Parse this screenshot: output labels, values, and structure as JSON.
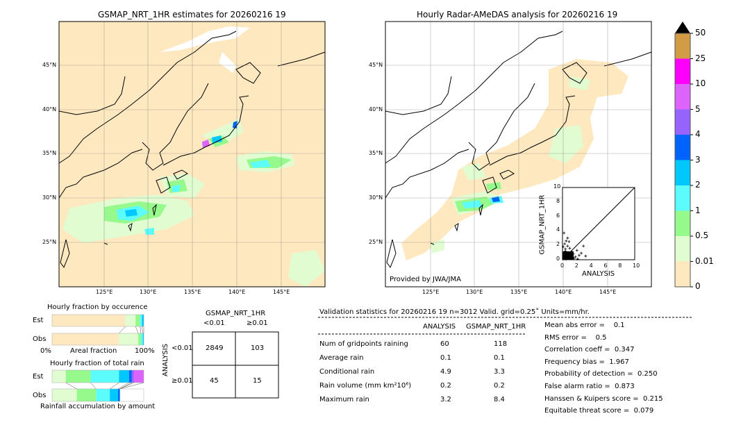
{
  "left_map": {
    "title": "GSMAP_NRT_1HR estimates for 20260216 19",
    "lon_ticks": [
      "125°E",
      "130°E",
      "135°E",
      "140°E",
      "145°E"
    ],
    "lat_ticks": [
      "45°N",
      "40°N",
      "35°N",
      "30°N",
      "25°N"
    ]
  },
  "right_map": {
    "title": "Hourly Radar-AMeDAS analysis for 20260216 19",
    "lon_ticks": [
      "125°E",
      "130°E",
      "135°E",
      "140°E",
      "145°E"
    ],
    "lat_ticks": [
      "45°N",
      "40°N",
      "35°N",
      "30°N",
      "25°N"
    ],
    "credit": "Provided by JWA/JMA"
  },
  "colorbar": {
    "labels": [
      "0",
      "0.01",
      "0.5",
      "1",
      "2",
      "3",
      "4",
      "5",
      "10",
      "25",
      "50"
    ],
    "colors": [
      "#fee8c0",
      "#e0fcd0",
      "#96f98c",
      "#5cfcfc",
      "#00c8fc",
      "#0064fc",
      "#9664fc",
      "#dc64fc",
      "#fc00fc",
      "#d29b46"
    ],
    "extend_color": "#000000"
  },
  "chart_data": [
    {
      "type": "scatter",
      "xlabel": "ANALYSIS",
      "ylabel": "GSMAP_NRT_1HR",
      "xlim": [
        0,
        10
      ],
      "ylim": [
        0,
        10
      ],
      "x_ticks": [
        "0",
        "2",
        "4",
        "6",
        "8",
        "10"
      ],
      "y_ticks": [
        "0",
        "2",
        "4",
        "6",
        "8",
        "10"
      ],
      "diagonal": true,
      "points": [
        [
          0.2,
          0.3
        ],
        [
          0.4,
          1.2
        ],
        [
          0.5,
          2.6
        ],
        [
          0.7,
          3.0
        ],
        [
          0.3,
          2.2
        ],
        [
          0.9,
          2.5
        ],
        [
          1.0,
          1.6
        ],
        [
          1.3,
          1.1
        ],
        [
          1.5,
          0.8
        ],
        [
          2.0,
          1.3
        ],
        [
          2.3,
          0.6
        ],
        [
          2.6,
          0.9
        ],
        [
          2.9,
          1.9
        ],
        [
          3.2,
          0.5
        ],
        [
          1.8,
          0.4
        ],
        [
          0.6,
          0.7
        ],
        [
          0.1,
          1.8
        ],
        [
          0.2,
          3.7
        ],
        [
          0.8,
          0.2
        ],
        [
          1.1,
          0.5
        ],
        [
          0.5,
          0.1
        ],
        [
          0.3,
          0.9
        ],
        [
          1.6,
          0.2
        ],
        [
          2.1,
          0.1
        ],
        [
          0.4,
          1.5
        ],
        [
          0.7,
          1.9
        ]
      ]
    },
    {
      "type": "bar",
      "title": "Hourly fraction by occurence",
      "xlabel": "Areal fraction",
      "x_ticks": [
        "0%",
        "100%"
      ],
      "categories": [
        "Est",
        "Obs"
      ],
      "series": [
        {
          "values": [
            0.8,
            0.73
          ]
        },
        {
          "values": [
            0.11,
            0.21
          ]
        },
        {
          "values": [
            0.05,
            0.03
          ]
        },
        {
          "values": [
            0.02,
            0.02
          ]
        },
        {
          "values": [
            0.02,
            0.01
          ]
        }
      ]
    },
    {
      "type": "bar",
      "title": "Hourly fraction of total rain",
      "xlabel": "Rainfall accumulation by amount",
      "categories": [
        "Est",
        "Obs"
      ],
      "series": [
        {
          "values": [
            0.15,
            0.27
          ]
        },
        {
          "values": [
            0.27,
            0.21
          ]
        },
        {
          "values": [
            0.31,
            0.15
          ]
        },
        {
          "values": [
            0.11,
            0.09
          ]
        },
        {
          "values": [
            0.03,
            0.02
          ]
        },
        {
          "values": [
            0.02,
            0
          ]
        },
        {
          "values": [
            0.11,
            0
          ]
        }
      ]
    }
  ],
  "contingency": {
    "title": "GSMAP_NRT_1HR",
    "col_labels": [
      "<0.01",
      "≥0.01"
    ],
    "row_title": "ANALYSIS",
    "row_labels": [
      "<0.01",
      "≥0.01"
    ],
    "cells": [
      [
        "2849",
        "103"
      ],
      [
        "45",
        "15"
      ]
    ]
  },
  "stats": {
    "header": "Validation statistics for 20260216 19  n=3012 Valid. grid=0.25˚ Units=mm/hr.",
    "col_analysis": "ANALYSIS",
    "col_gsmap": "GSMAP_NRT_1HR",
    "rows": [
      {
        "label": "Num of gridpoints raining",
        "a": "60",
        "g": "118"
      },
      {
        "label": "Average rain",
        "a": "0.1",
        "g": "0.1"
      },
      {
        "label": "Conditional rain",
        "a": "4.9",
        "g": "3.3"
      },
      {
        "label": "Rain volume (mm km²10⁶)",
        "a": "0.2",
        "g": "0.2"
      },
      {
        "label": "Maximum rain",
        "a": "3.2",
        "g": "8.4"
      }
    ],
    "scores": [
      "Mean abs error =    0.1",
      "RMS error =    0.5",
      "Correlation coeff =  0.347",
      "Frequency bias =  1.967",
      "Probability of detection =  0.250",
      "False alarm ratio =  0.873",
      "Hanssen & Kuipers score =  0.215",
      "Equitable threat score =  0.079"
    ]
  }
}
